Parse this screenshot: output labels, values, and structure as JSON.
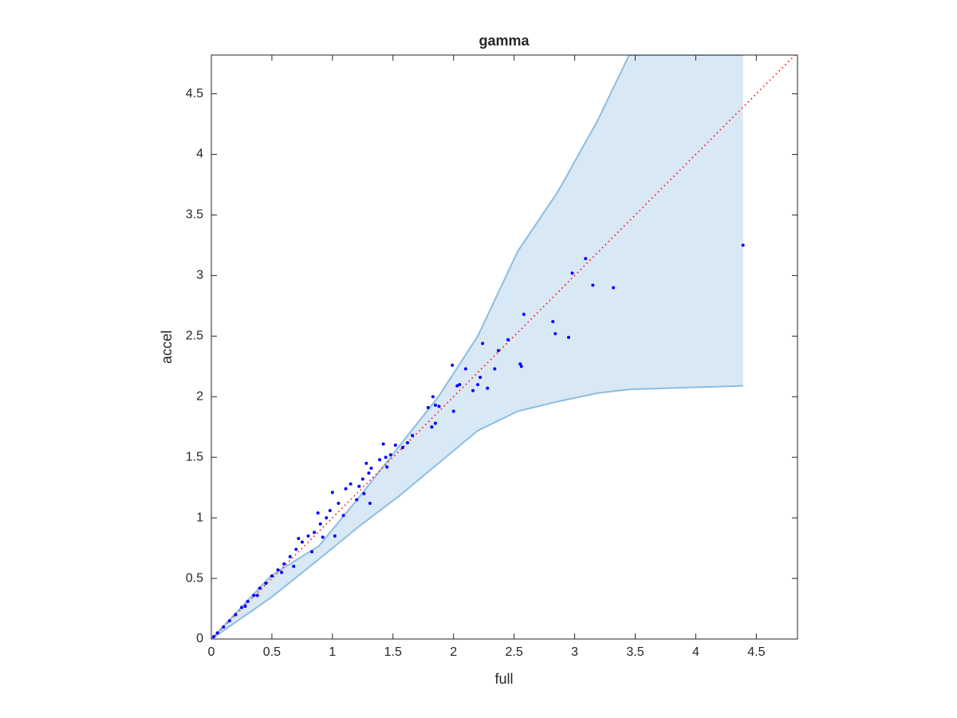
{
  "chart_data": {
    "type": "scatter",
    "title": "gamma",
    "x_label": "full",
    "y_label": "accel",
    "xlim": [
      0,
      4.84
    ],
    "ylim": [
      0,
      4.82
    ],
    "xticks": [
      0,
      0.5,
      1,
      1.5,
      2,
      2.5,
      3,
      3.5,
      4,
      4.5
    ],
    "yticks": [
      0,
      0.5,
      1,
      1.5,
      2,
      2.5,
      3,
      3.5,
      4,
      4.5
    ],
    "point_color": "#0000ff",
    "band_color": "#d9e8f5",
    "band_edge_color": "#8dbde0",
    "reference_color": "#ff0000",
    "band": {
      "x": [
        0,
        0.49,
        0.89,
        1.22,
        1.55,
        1.875,
        2.2,
        2.53,
        2.86,
        3.19,
        3.45,
        4.39
      ],
      "upper": [
        0,
        0.52,
        0.77,
        1.17,
        1.59,
        2.0,
        2.5,
        3.2,
        3.69,
        4.28,
        4.82,
        4.82
      ],
      "lower": [
        0,
        0.34,
        0.66,
        0.93,
        1.18,
        1.45,
        1.72,
        1.88,
        1.96,
        2.03,
        2.06,
        2.09
      ]
    },
    "reference_line": {
      "x": [
        0,
        4.84
      ],
      "y": [
        0,
        4.84
      ]
    },
    "points": {
      "x": [
        4.39,
        3.09,
        2.98,
        3.15,
        3.32,
        2.82,
        2.84,
        2.95,
        2.58,
        2.55,
        2.56,
        2.45,
        2.37,
        2.24,
        2.34,
        2.28,
        2.22,
        2.16,
        2.2,
        2.1,
        2.05,
        2.03,
        1.99,
        2.0,
        1.85,
        1.83,
        1.88,
        1.79,
        1.85,
        1.82,
        1.62,
        1.66,
        1.58,
        1.52,
        1.48,
        1.44,
        1.42,
        1.39,
        1.32,
        1.28,
        1.3,
        1.25,
        1.22,
        1.15,
        1.2,
        1.11,
        1.0,
        1.05,
        0.98,
        0.95,
        0.9,
        0.88,
        0.85,
        0.8,
        0.75,
        0.7,
        0.65,
        0.6,
        0.55,
        0.5,
        0.45,
        0.4,
        0.35,
        0.3,
        0.25,
        0.2,
        0.15,
        0.1,
        0.05,
        0.02,
        1.31,
        1.02,
        0.83,
        0.68,
        0.72,
        1.09,
        1.26,
        1.45,
        0.92,
        0.58,
        0.38,
        0.28
      ],
      "y": [
        3.25,
        3.14,
        3.02,
        2.92,
        2.9,
        2.62,
        2.52,
        2.49,
        2.68,
        2.27,
        2.25,
        2.47,
        2.38,
        2.44,
        2.23,
        2.07,
        2.16,
        2.05,
        2.1,
        2.23,
        2.1,
        2.09,
        2.26,
        1.88,
        1.93,
        2.0,
        1.92,
        1.91,
        1.78,
        1.75,
        1.62,
        1.68,
        1.58,
        1.6,
        1.52,
        1.5,
        1.61,
        1.48,
        1.41,
        1.45,
        1.37,
        1.32,
        1.26,
        1.28,
        1.15,
        1.24,
        1.21,
        1.12,
        1.06,
        1.0,
        0.95,
        1.04,
        0.88,
        0.85,
        0.8,
        0.74,
        0.68,
        0.62,
        0.57,
        0.52,
        0.46,
        0.42,
        0.36,
        0.31,
        0.26,
        0.2,
        0.15,
        0.1,
        0.05,
        0.02,
        1.12,
        0.85,
        0.72,
        0.6,
        0.83,
        1.02,
        1.2,
        1.42,
        0.84,
        0.55,
        0.36,
        0.27
      ]
    }
  }
}
